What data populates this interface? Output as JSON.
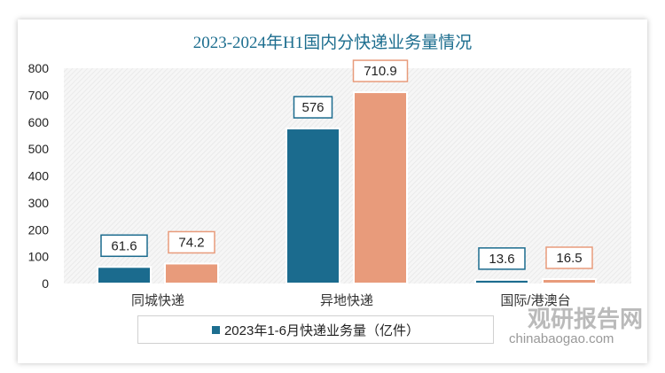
{
  "chart_data": {
    "type": "bar",
    "title": "2023-2024年H1国内分快递业务量情况",
    "categories": [
      "同城快递",
      "异地快递",
      "国际/港澳台"
    ],
    "series": [
      {
        "name": "2023年1-6月快递业务量（亿件）",
        "color": "#1b6b8e",
        "values": [
          61.6,
          576,
          13.6
        ],
        "labels": [
          "61.6",
          "576",
          "13.6"
        ]
      },
      {
        "name": "",
        "color": "#e89b7b",
        "values": [
          74.2,
          710.9,
          16.5
        ],
        "labels": [
          "74.2",
          "710.9",
          "16.5"
        ]
      }
    ],
    "ylim": [
      0,
      800
    ],
    "yticks": [
      "0",
      "100",
      "200",
      "300",
      "400",
      "500",
      "600",
      "700",
      "800"
    ],
    "legend": "bottom"
  },
  "watermark": {
    "cn": "观研报告网",
    "en": "chinabaogao.com"
  }
}
